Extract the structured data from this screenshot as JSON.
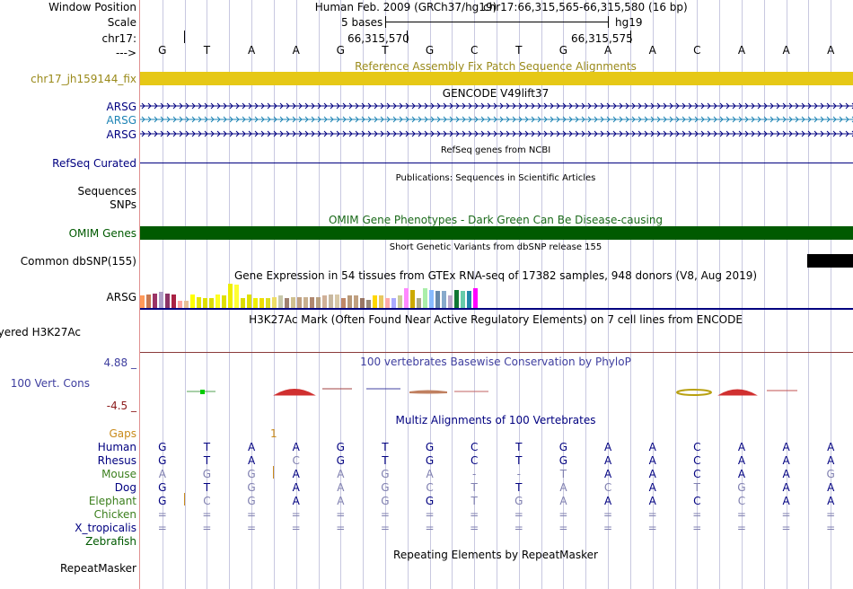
{
  "labels": {
    "window_position": "Window Position",
    "scale": "Scale",
    "chrom": "chr17:",
    "arrow": "--->",
    "fix_patch": "chr17_jh159144_fix",
    "arsg1": "ARSG",
    "arsg2": "ARSG",
    "arsg3": "ARSG",
    "refseq": "RefSeq Curated",
    "sequences": "Sequences",
    "snps": "SNPs",
    "omim": "OMIM Genes",
    "dbsnp": "Common dbSNP(155)",
    "gtex": "ARSG",
    "h3k27ac": "Layered H3K27Ac",
    "cons_max": "4.88 _",
    "cons": "100 Vert. Cons",
    "cons_min": "-4.5 _",
    "gaps": "Gaps",
    "species": [
      "Human",
      "Rhesus",
      "Mouse",
      "Dog",
      "Elephant",
      "Chicken",
      "X_tropicalis",
      "Zebrafish"
    ],
    "repeatmasker": "RepeatMasker"
  },
  "header": {
    "assembly": "Human Feb. 2009 (GRCh37/hg19)",
    "position": "chr17:66,315,565-66,315,580 (16 bp)",
    "scale_text": "5 bases",
    "scale_db": "hg19",
    "tick1": "66,315,570",
    "tick2": "66,315,575"
  },
  "titles": {
    "fix_patch": "Reference Assembly Fix Patch Sequence Alignments",
    "gencode": "GENCODE V49lift37",
    "refseq": "RefSeq genes from NCBI",
    "publications": "Publications: Sequences in Scientific Articles",
    "omim": "OMIM Gene Phenotypes - Dark Green Can Be Disease-causing",
    "dbsnp": "Short Genetic Variants from dbSNP release 155",
    "gtex": "Gene Expression in 54 tissues from GTEx RNA-seq of 17382 samples, 948 donors (V8, Aug 2019)",
    "h3k27ac": "H3K27Ac Mark (Often Found Near Active Regulatory Elements) on 7 cell lines from ENCODE",
    "cons": "100 vertebrates Basewise Conservation by PhyloP",
    "multiz": "Multiz Alignments of 100 Vertebrates",
    "gaps_value": "1",
    "repeatmasker": "Repeating Elements by RepeatMasker"
  },
  "sequence": [
    "G",
    "T",
    "A",
    "A",
    "G",
    "T",
    "G",
    "C",
    "T",
    "G",
    "A",
    "A",
    "C",
    "A",
    "A",
    "A"
  ],
  "alignment": [
    {
      "species": "Human",
      "bases": [
        "G",
        "T",
        "A",
        "A",
        "G",
        "T",
        "G",
        "C",
        "T",
        "G",
        "A",
        "A",
        "C",
        "A",
        "A",
        "A"
      ]
    },
    {
      "species": "Rhesus",
      "bases": [
        "G",
        "T",
        "A",
        "C",
        "G",
        "T",
        "G",
        "C",
        "T",
        "G",
        "A",
        "A",
        "C",
        "A",
        "A",
        "A"
      ]
    },
    {
      "species": "Mouse",
      "bases": [
        "A",
        "G",
        "G",
        "A",
        "A",
        "G",
        "A",
        "-",
        "-",
        "T",
        "A",
        "A",
        "C",
        "A",
        "A",
        "G"
      ]
    },
    {
      "species": "Dog",
      "bases": [
        "G",
        "T",
        "G",
        "A",
        "A",
        "G",
        "C",
        "T",
        "T",
        "A",
        "C",
        "A",
        "T",
        "G",
        "A",
        "A"
      ]
    },
    {
      "species": "Elephant",
      "bases": [
        "G",
        "C",
        "G",
        "A",
        "A",
        "G",
        "G",
        "T",
        "G",
        "A",
        "A",
        "A",
        "C",
        "C",
        "A",
        "A"
      ]
    },
    {
      "species": "Chicken",
      "bases": [
        "=",
        "=",
        "=",
        "=",
        "=",
        "=",
        "=",
        "=",
        "=",
        "=",
        "=",
        "=",
        "=",
        "=",
        "=",
        "="
      ]
    },
    {
      "species": "X_tropicalis",
      "bases": [
        "=",
        "=",
        "=",
        "=",
        "=",
        "=",
        "=",
        "=",
        "=",
        "=",
        "=",
        "=",
        "=",
        "=",
        "=",
        "="
      ]
    },
    {
      "species": "Zebrafish",
      "bases": [
        "",
        "",
        "",
        "",
        "",
        "",
        "",
        "",
        "",
        "",
        "",
        "",
        "",
        "",
        "",
        ""
      ]
    }
  ],
  "gtex_level": [
    0.5,
    0.55,
    0.6,
    0.65,
    0.6,
    0.55,
    0.3,
    0.3,
    0.55,
    0.45,
    0.4,
    0.4,
    0.55,
    0.5,
    1.0,
    0.95,
    0.4,
    0.55,
    0.4,
    0.4,
    0.4,
    0.45,
    0.5,
    0.4,
    0.45,
    0.45,
    0.45,
    0.45,
    0.45,
    0.5,
    0.55,
    0.55,
    0.4,
    0.5,
    0.5,
    0.4,
    0.35,
    0.5,
    0.5,
    0.4,
    0.4,
    0.5,
    0.8,
    0.75,
    0.4,
    0.8,
    0.75,
    0.7,
    0.7,
    0.5,
    0.75,
    0.7,
    0.7,
    0.8
  ],
  "colors": {
    "navy": "#000080",
    "gencode_mid": "#1E84B5",
    "fix": "#E6C816",
    "fix_label": "#9A8A1A",
    "omim": "#005A00",
    "omim_title": "#1A6A1A",
    "cons_title": "#3E3E9F",
    "gaps": "#C98A1A",
    "green": "#3B7F1D",
    "mouse_diff": "#8080B0",
    "grid": "#C8C8E0",
    "rm_line": "#000080"
  }
}
